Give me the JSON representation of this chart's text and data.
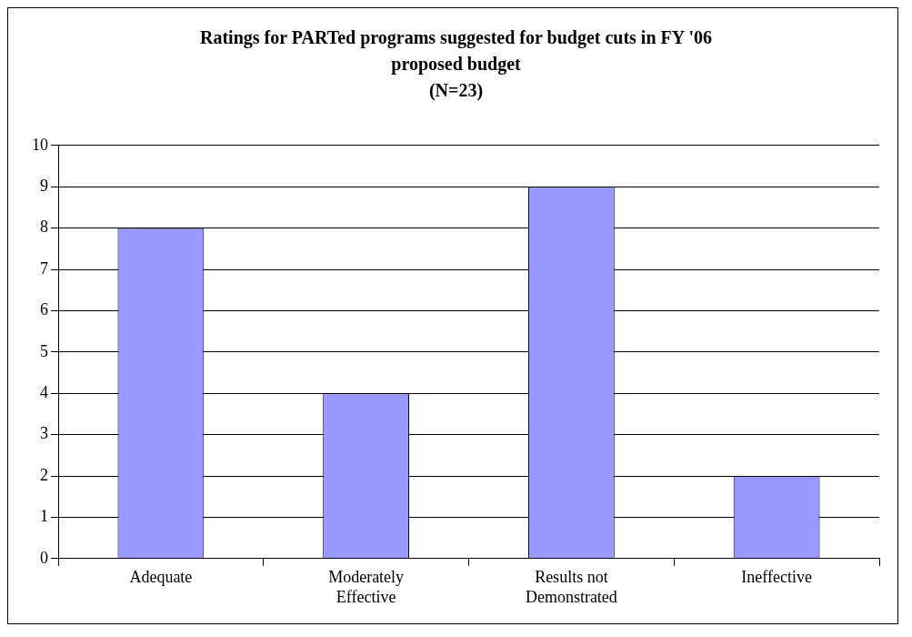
{
  "chart_data": {
    "type": "bar",
    "title": "Ratings for PARTed programs suggested for budget cuts in FY '06 proposed budget",
    "subtitle": "(N=23)",
    "categories": [
      "Adequate",
      "Moderately Effective",
      "Results not Demonstrated",
      "Ineffective"
    ],
    "values": [
      8,
      4,
      9,
      2
    ],
    "color": "#9999ff",
    "ylim": [
      0,
      10
    ],
    "yticks": [
      0,
      1,
      2,
      3,
      4,
      5,
      6,
      7,
      8,
      9,
      10
    ],
    "grid": "y",
    "legend": false
  }
}
